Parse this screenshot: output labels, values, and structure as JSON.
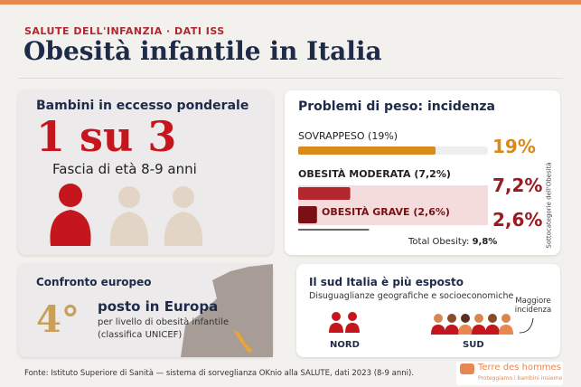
{
  "header": {
    "kicker": "SALUTE DELL'INFANZIA · DATI ISS",
    "title": "Obesità infantile in Italia"
  },
  "excess": {
    "title": "Bambini in eccesso ponderale",
    "ratio": "1 su 3",
    "age": "Fascia di età 8-9 anni"
  },
  "incidence": {
    "title": "Problemi di peso: incidenza",
    "items": [
      {
        "label": "SOVRAPPESO (19%)",
        "value": 19,
        "value_label": "19%"
      },
      {
        "label": "OBESITÀ MODERATA (7,2%)",
        "value": 7.2,
        "value_label": "7,2%"
      },
      {
        "label": "OBESITÀ GRAVE (2,6%)",
        "value": 2.6,
        "value_label": "2,6%"
      }
    ],
    "side_note": "Sottocategorie dell'Obesità",
    "total": {
      "label": "Total Obesity:",
      "value": 9.8,
      "value_label": "9,8%"
    }
  },
  "europe": {
    "title": "Confronto europeo",
    "rank": "4°",
    "rank_text": "posto in Europa",
    "detail": "per livello di obesità infantile",
    "source": "(classifica UNICEF)"
  },
  "south": {
    "title": "Il sud Italia è più esposto",
    "subtitle": "Disuguaglianze geografiche e socioeconomiche",
    "note": "Maggiore incidenza",
    "north_label": "NORD",
    "south_label": "SUD"
  },
  "footer": {
    "source": "Fonte: Istituto Superiore di Sanità — sistema di sorveglianza OKnio alla SALUTE, dati 2023 (8-9 anni).",
    "logo": "Terre des hommes",
    "logo_tagline": "Proteggiamo i bambini insieme"
  }
}
